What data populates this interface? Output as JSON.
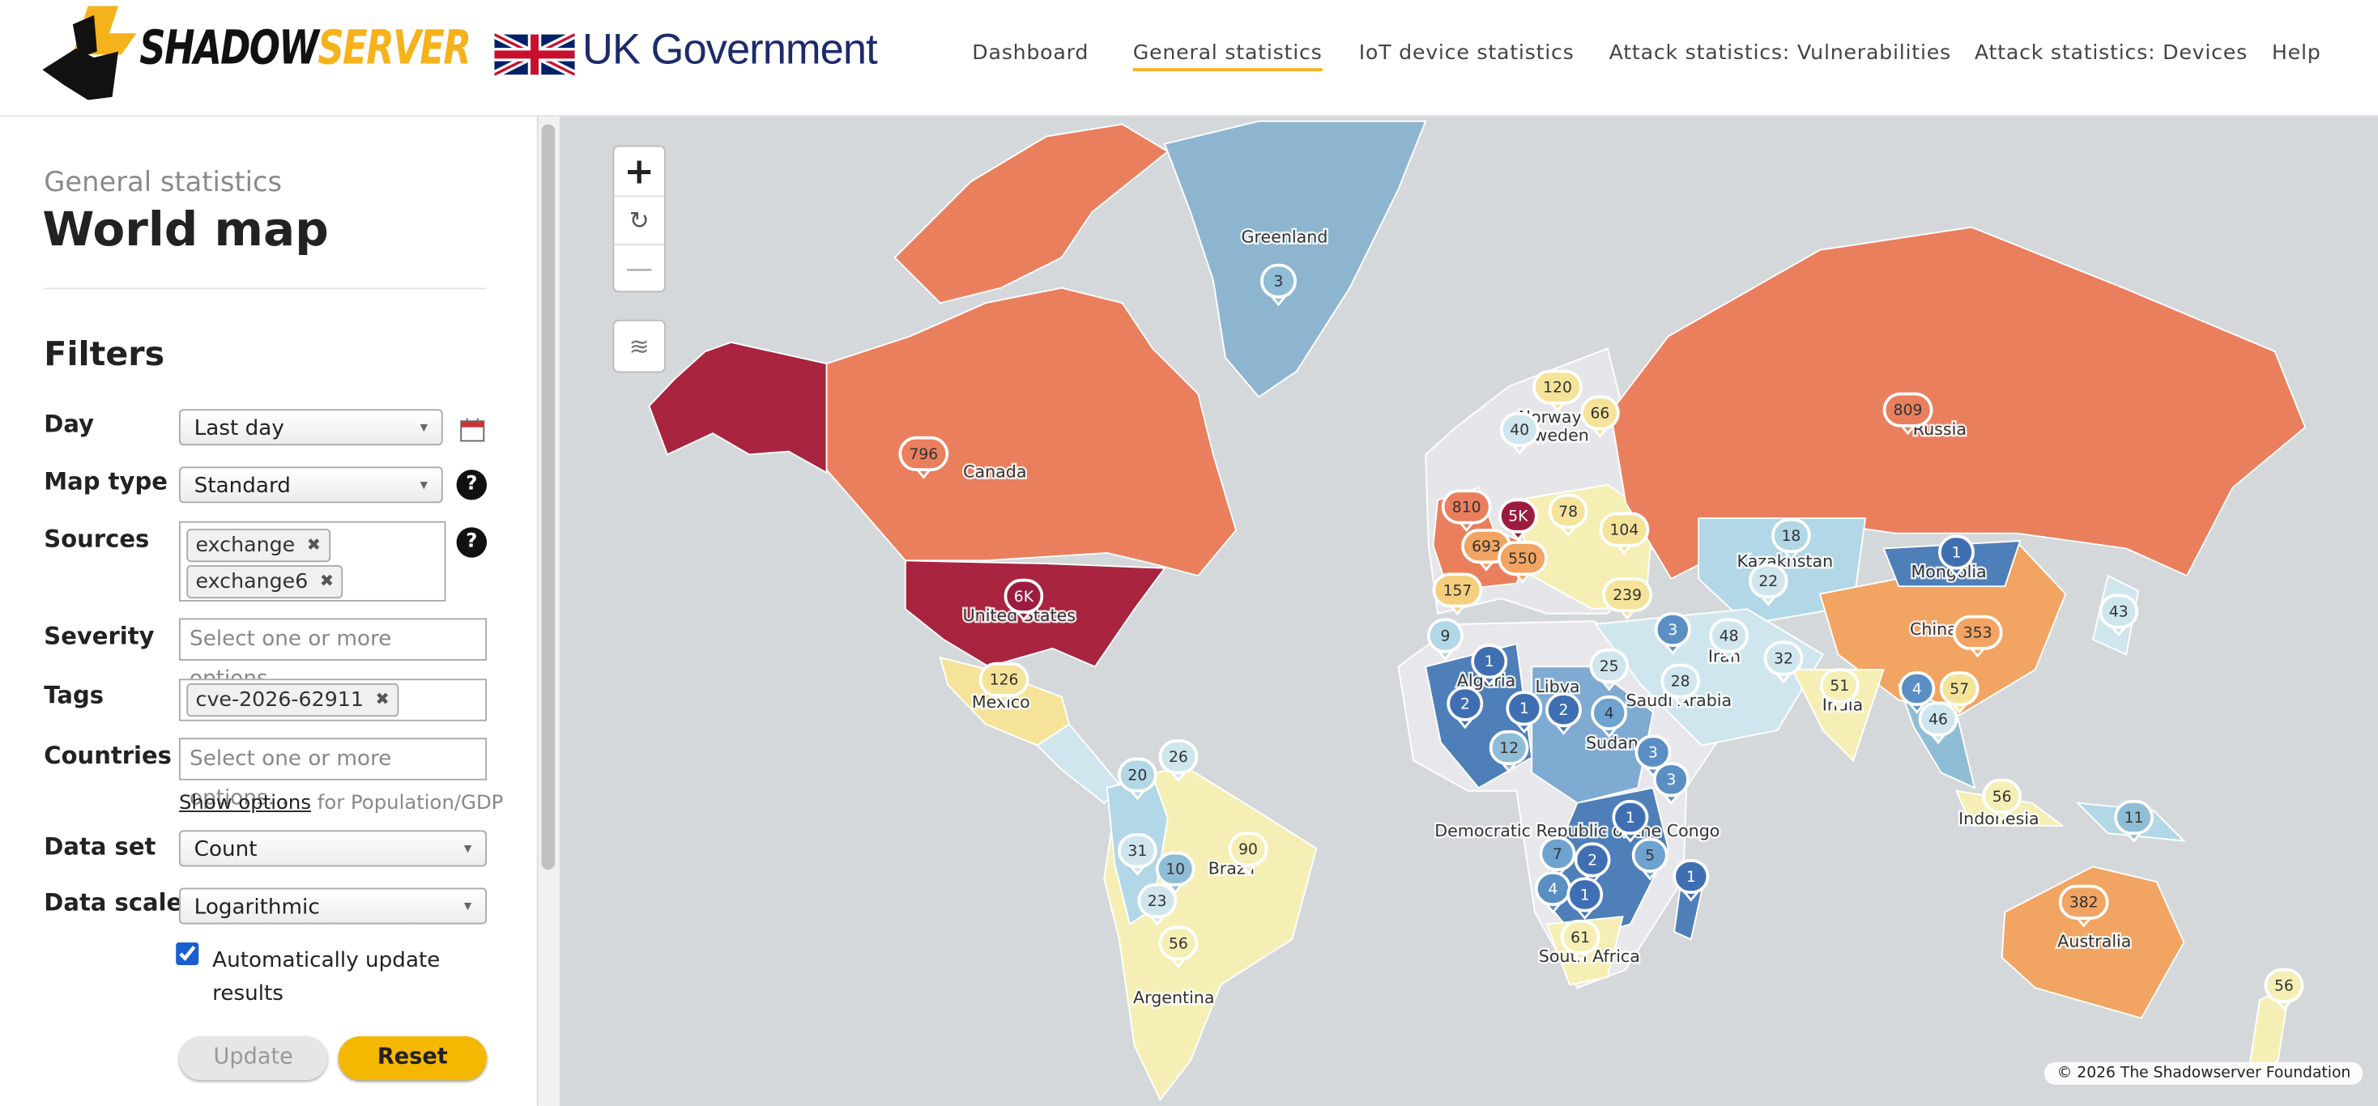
{
  "header": {
    "logo": {
      "first": "SHADOW",
      "second": "SERVER"
    },
    "partner": "UK Government",
    "nav": [
      {
        "label": "Dashboard",
        "active": false
      },
      {
        "label": "General statistics",
        "active": true
      },
      {
        "label": "IoT device statistics",
        "active": false
      },
      {
        "label": "Attack statistics: Vulnerabilities",
        "active": false
      },
      {
        "label": "Attack statistics: Devices",
        "active": false
      },
      {
        "label": "Help",
        "active": false
      }
    ]
  },
  "sidebar": {
    "breadcrumb": "General statistics",
    "title": "World map",
    "filters_title": "Filters",
    "day": {
      "label": "Day",
      "value": "Last day"
    },
    "map_type": {
      "label": "Map type",
      "value": "Standard"
    },
    "sources": {
      "label": "Sources",
      "tags": [
        "exchange",
        "exchange6"
      ]
    },
    "severity": {
      "label": "Severity",
      "placeholder": "Select one or more options..."
    },
    "tags": {
      "label": "Tags",
      "tags": [
        "cve-2026-62911"
      ]
    },
    "countries": {
      "label": "Countries",
      "placeholder": "Select one or more options..."
    },
    "show_options": {
      "link": "Show options",
      "suffix": "for Population/GDP"
    },
    "data_set": {
      "label": "Data set",
      "value": "Count"
    },
    "data_scale": {
      "label": "Data scale",
      "value": "Logarithmic"
    },
    "auto_update": {
      "label": "Automatically update results",
      "checked": true
    },
    "buttons": {
      "update": "Update",
      "reset": "Reset"
    }
  },
  "map": {
    "country_labels": [
      "Greenland",
      "Canada",
      "United States",
      "Mexico",
      "Norway",
      "Sweden",
      "Russia",
      "Kazakhstan",
      "Mongolia",
      "Iran",
      "China",
      "Algeria",
      "Libya",
      "Saudi Arabia",
      "India",
      "Sudan",
      "Indonesia",
      "Democratic Republic of the Congo",
      "Brazil",
      "Australia",
      "South Africa",
      "Argentina"
    ],
    "markers": [
      {
        "value": 3,
        "color": "#8fbdd6"
      },
      {
        "value": 796,
        "color": "#ea7f5e"
      },
      {
        "value": "6K",
        "color": "#9c1c40"
      },
      {
        "value": 126,
        "color": "#f5e39a"
      },
      {
        "value": 120,
        "color": "#f5e39a"
      },
      {
        "value": 66,
        "color": "#f5e39a"
      },
      {
        "value": 40,
        "color": "#cfe6ee"
      },
      {
        "value": 809,
        "color": "#ea7f5e"
      },
      {
        "value": 810,
        "color": "#ea7f5e"
      },
      {
        "value": "5K",
        "color": "#9c1c40"
      },
      {
        "value": 78,
        "color": "#f5e39a"
      },
      {
        "value": 693,
        "color": "#f2a463"
      },
      {
        "value": 550,
        "color": "#f2a463"
      },
      {
        "value": 104,
        "color": "#f5e39a"
      },
      {
        "value": 157,
        "color": "#f5cf7e"
      },
      {
        "value": 239,
        "color": "#f5e39a"
      },
      {
        "value": 18,
        "color": "#b2d7e6"
      },
      {
        "value": 1,
        "color": "#3f6fb2"
      },
      {
        "value": 22,
        "color": "#cfe6ee"
      },
      {
        "value": 9,
        "color": "#b2d7e6"
      },
      {
        "value": 3,
        "color": "#5b8fc3"
      },
      {
        "value": 48,
        "color": "#cfe6ee"
      },
      {
        "value": 32,
        "color": "#cfe6ee"
      },
      {
        "value": 43,
        "color": "#cfe6ee"
      },
      {
        "value": 353,
        "color": "#f2a463"
      },
      {
        "value": 1,
        "color": "#3f6fb2"
      },
      {
        "value": 25,
        "color": "#cfe6ee"
      },
      {
        "value": 28,
        "color": "#cfe6ee"
      },
      {
        "value": 51,
        "color": "#f5efb5"
      },
      {
        "value": 4,
        "color": "#5b8fc3"
      },
      {
        "value": 57,
        "color": "#f5e39a"
      },
      {
        "value": 2,
        "color": "#3f6fb2"
      },
      {
        "value": 1,
        "color": "#3f6fb2"
      },
      {
        "value": 2,
        "color": "#3f6fb2"
      },
      {
        "value": 4,
        "color": "#6fa3cf"
      },
      {
        "value": 46,
        "color": "#cfe6ee"
      },
      {
        "value": 12,
        "color": "#8fbdd6"
      },
      {
        "value": 3,
        "color": "#5b8fc3"
      },
      {
        "value": 3,
        "color": "#5b8fc3"
      },
      {
        "value": 26,
        "color": "#cfe6ee"
      },
      {
        "value": 20,
        "color": "#b2d7e6"
      },
      {
        "value": 56,
        "color": "#f5efb5"
      },
      {
        "value": 11,
        "color": "#8fbdd6"
      },
      {
        "value": 1,
        "color": "#3f6fb2"
      },
      {
        "value": 7,
        "color": "#6fa3cf"
      },
      {
        "value": 2,
        "color": "#3f6fb2"
      },
      {
        "value": 5,
        "color": "#6fa3cf"
      },
      {
        "value": 31,
        "color": "#cfe6ee"
      },
      {
        "value": 10,
        "color": "#8fbdd6"
      },
      {
        "value": 90,
        "color": "#f5efb5"
      },
      {
        "value": 4,
        "color": "#5b8fc3"
      },
      {
        "value": 1,
        "color": "#3f6fb2"
      },
      {
        "value": 1,
        "color": "#3f6fb2"
      },
      {
        "value": 23,
        "color": "#cfe6ee"
      },
      {
        "value": 382,
        "color": "#f2a463"
      },
      {
        "value": 56,
        "color": "#f5efb5"
      },
      {
        "value": 61,
        "color": "#f5efb5"
      },
      {
        "value": 56,
        "color": "#f5efb5"
      }
    ],
    "attribution": "© 2026 The Shadowserver Foundation"
  }
}
